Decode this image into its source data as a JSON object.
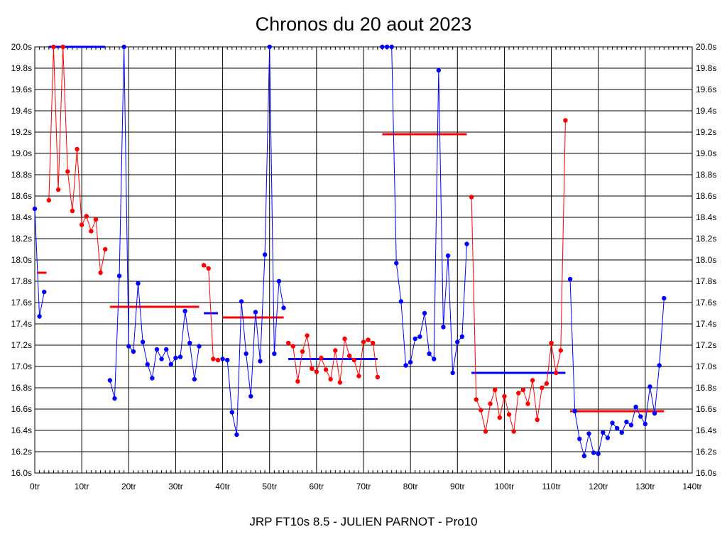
{
  "chart_data": {
    "type": "line",
    "title": "Chronos du 20 aout 2023",
    "subtitle": "JRP FT10s 8.5 - JULIEN PARNOT - Pro10",
    "xlim": [
      0,
      140
    ],
    "ylim": [
      16.0,
      20.0
    ],
    "x_ticks": [
      0,
      10,
      20,
      30,
      40,
      50,
      60,
      70,
      80,
      90,
      100,
      110,
      120,
      130,
      140
    ],
    "x_tick_labels": [
      "0tr",
      "10tr",
      "20tr",
      "30tr",
      "40tr",
      "50tr",
      "60tr",
      "70tr",
      "80tr",
      "90tr",
      "100tr",
      "110tr",
      "120tr",
      "130tr",
      "140tr"
    ],
    "y_ticks": [
      16.0,
      16.2,
      16.4,
      16.6,
      16.8,
      17.0,
      17.2,
      17.4,
      17.6,
      17.8,
      18.0,
      18.2,
      18.4,
      18.6,
      18.8,
      19.0,
      19.2,
      19.4,
      19.6,
      19.8,
      20.0
    ],
    "y_tick_labels": [
      "16.0s",
      "16.2s",
      "16.4s",
      "16.6s",
      "16.8s",
      "17.0s",
      "17.2s",
      "17.4s",
      "17.6s",
      "17.8s",
      "18.0s",
      "18.2s",
      "18.4s",
      "18.6s",
      "18.8s",
      "19.0s",
      "19.2s",
      "19.4s",
      "19.6s",
      "19.8s",
      "20.0s"
    ],
    "grid": true,
    "colors": {
      "blue": "#0000ff",
      "red": "#ff0000"
    },
    "series": [
      {
        "color": "blue",
        "points": [
          [
            0,
            18.48
          ],
          [
            1,
            17.47
          ],
          [
            2,
            17.7
          ]
        ]
      },
      {
        "color": "red",
        "points": [
          [
            3,
            18.56
          ],
          [
            4,
            20.0
          ],
          [
            5,
            18.66
          ],
          [
            6,
            20.0
          ],
          [
            7,
            18.83
          ],
          [
            8,
            18.46
          ],
          [
            9,
            19.04
          ],
          [
            10,
            18.33
          ],
          [
            11,
            18.41
          ],
          [
            12,
            18.27
          ],
          [
            13,
            18.38
          ],
          [
            14,
            17.88
          ],
          [
            15,
            18.1
          ]
        ]
      },
      {
        "color": "blue",
        "points": [
          [
            16,
            16.87
          ],
          [
            17,
            16.7
          ],
          [
            18,
            17.85
          ],
          [
            19,
            20.0
          ],
          [
            20,
            17.19
          ],
          [
            21,
            17.14
          ],
          [
            22,
            17.78
          ],
          [
            23,
            17.23
          ],
          [
            24,
            17.02
          ],
          [
            25,
            16.89
          ],
          [
            26,
            17.16
          ],
          [
            27,
            17.07
          ],
          [
            28,
            17.16
          ],
          [
            29,
            17.02
          ],
          [
            30,
            17.08
          ],
          [
            31,
            17.09
          ],
          [
            32,
            17.52
          ],
          [
            33,
            17.22
          ],
          [
            34,
            16.88
          ],
          [
            35,
            17.19
          ]
        ]
      },
      {
        "color": "red",
        "points": [
          [
            36,
            17.95
          ],
          [
            37,
            17.92
          ],
          [
            38,
            17.07
          ],
          [
            39,
            17.06
          ]
        ]
      },
      {
        "color": "blue",
        "points": [
          [
            40,
            17.07
          ],
          [
            41,
            17.06
          ],
          [
            42,
            16.57
          ],
          [
            43,
            16.36
          ],
          [
            44,
            17.61
          ],
          [
            45,
            17.12
          ],
          [
            46,
            16.72
          ],
          [
            47,
            17.51
          ],
          [
            48,
            17.05
          ],
          [
            49,
            18.05
          ],
          [
            50,
            20.0
          ],
          [
            51,
            17.12
          ],
          [
            52,
            17.8
          ],
          [
            53,
            17.55
          ]
        ]
      },
      {
        "color": "red",
        "points": [
          [
            54,
            17.22
          ],
          [
            55,
            17.19
          ],
          [
            56,
            16.86
          ],
          [
            57,
            17.14
          ],
          [
            58,
            17.29
          ],
          [
            59,
            16.98
          ],
          [
            60,
            16.95
          ],
          [
            61,
            17.08
          ],
          [
            62,
            16.97
          ],
          [
            63,
            16.88
          ],
          [
            64,
            17.15
          ],
          [
            65,
            16.85
          ],
          [
            66,
            17.26
          ],
          [
            67,
            17.1
          ],
          [
            68,
            17.06
          ],
          [
            69,
            16.91
          ],
          [
            70,
            17.23
          ],
          [
            71,
            17.25
          ],
          [
            72,
            17.22
          ],
          [
            73,
            16.9
          ]
        ]
      },
      {
        "color": "blue",
        "points": [
          [
            74,
            20.0
          ],
          [
            75,
            20.0
          ],
          [
            76,
            20.0
          ],
          [
            77,
            17.97
          ],
          [
            78,
            17.61
          ],
          [
            79,
            17.01
          ],
          [
            80,
            17.04
          ],
          [
            81,
            17.26
          ],
          [
            82,
            17.28
          ],
          [
            83,
            17.5
          ],
          [
            84,
            17.12
          ],
          [
            85,
            17.07
          ],
          [
            86,
            19.78
          ],
          [
            87,
            17.37
          ],
          [
            88,
            18.04
          ],
          [
            89,
            16.94
          ],
          [
            90,
            17.23
          ],
          [
            91,
            17.28
          ],
          [
            92,
            18.15
          ]
        ]
      },
      {
        "color": "red",
        "points": [
          [
            93,
            18.59
          ],
          [
            94,
            16.69
          ],
          [
            95,
            16.59
          ],
          [
            96,
            16.39
          ],
          [
            97,
            16.65
          ],
          [
            98,
            16.78
          ],
          [
            99,
            16.52
          ],
          [
            100,
            16.72
          ],
          [
            101,
            16.55
          ],
          [
            102,
            16.39
          ],
          [
            103,
            16.75
          ],
          [
            104,
            16.78
          ],
          [
            105,
            16.65
          ],
          [
            106,
            16.87
          ],
          [
            107,
            16.5
          ],
          [
            108,
            16.8
          ],
          [
            109,
            16.84
          ],
          [
            110,
            17.22
          ],
          [
            111,
            16.94
          ],
          [
            112,
            17.15
          ],
          [
            113,
            19.31
          ]
        ]
      },
      {
        "color": "blue",
        "points": [
          [
            114,
            17.82
          ],
          [
            115,
            16.58
          ],
          [
            116,
            16.32
          ],
          [
            117,
            16.16
          ],
          [
            118,
            16.37
          ],
          [
            119,
            16.19
          ],
          [
            120,
            16.18
          ],
          [
            121,
            16.38
          ],
          [
            122,
            16.33
          ],
          [
            123,
            16.47
          ],
          [
            124,
            16.42
          ],
          [
            125,
            16.38
          ],
          [
            126,
            16.48
          ],
          [
            127,
            16.45
          ],
          [
            128,
            16.62
          ],
          [
            129,
            16.53
          ],
          [
            130,
            16.46
          ],
          [
            131,
            16.81
          ],
          [
            132,
            16.56
          ],
          [
            133,
            17.01
          ],
          [
            134,
            17.64
          ]
        ]
      }
    ],
    "averages": [
      {
        "color": "red",
        "x": [
          0.5,
          2.5
        ],
        "y": 17.88
      },
      {
        "color": "blue",
        "x": [
          3,
          15
        ],
        "y": 20.0
      },
      {
        "color": "red",
        "x": [
          16,
          35
        ],
        "y": 17.56
      },
      {
        "color": "blue",
        "x": [
          36,
          39
        ],
        "y": 17.5
      },
      {
        "color": "red",
        "x": [
          40,
          53
        ],
        "y": 17.46
      },
      {
        "color": "blue",
        "x": [
          54,
          73
        ],
        "y": 17.07
      },
      {
        "color": "red",
        "x": [
          74,
          92
        ],
        "y": 19.18
      },
      {
        "color": "blue",
        "x": [
          93,
          113
        ],
        "y": 16.94
      },
      {
        "color": "red",
        "x": [
          114,
          134
        ],
        "y": 16.58
      }
    ]
  }
}
